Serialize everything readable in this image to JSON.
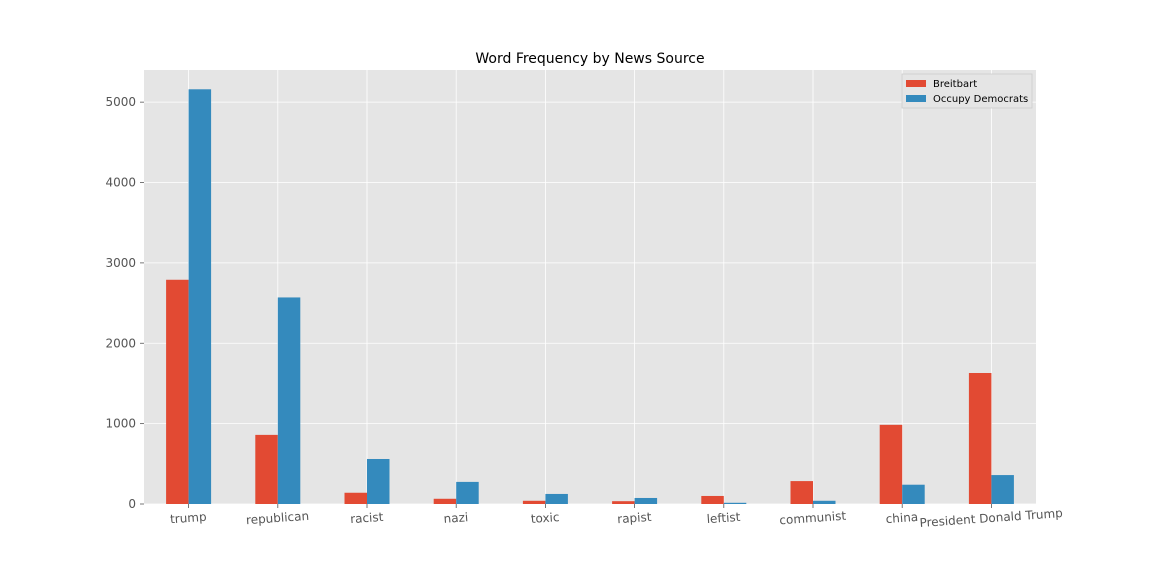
{
  "chart_data": {
    "type": "bar",
    "title": "Word Frequency by News Source",
    "xlabel": "",
    "ylabel": "",
    "categories": [
      "trump",
      "republican",
      "racist",
      "nazi",
      "toxic",
      "rapist",
      "leftist",
      "communist",
      "china",
      "President Donald Trump"
    ],
    "series": [
      {
        "name": "Breitbart",
        "color": "#E24A33",
        "values": [
          2790,
          860,
          140,
          65,
          40,
          35,
          100,
          285,
          985,
          1630
        ]
      },
      {
        "name": "Occupy Democrats",
        "color": "#348ABD",
        "values": [
          5160,
          2570,
          560,
          275,
          125,
          75,
          15,
          40,
          240,
          360
        ]
      }
    ],
    "yticks": [
      0,
      1000,
      2000,
      3000,
      4000,
      5000
    ],
    "ylim": [
      0,
      5400
    ],
    "grid": true,
    "legend_position": "top-right",
    "style": {
      "plot_background": "#E5E5E5",
      "grid_color": "#FFFFFF"
    }
  }
}
